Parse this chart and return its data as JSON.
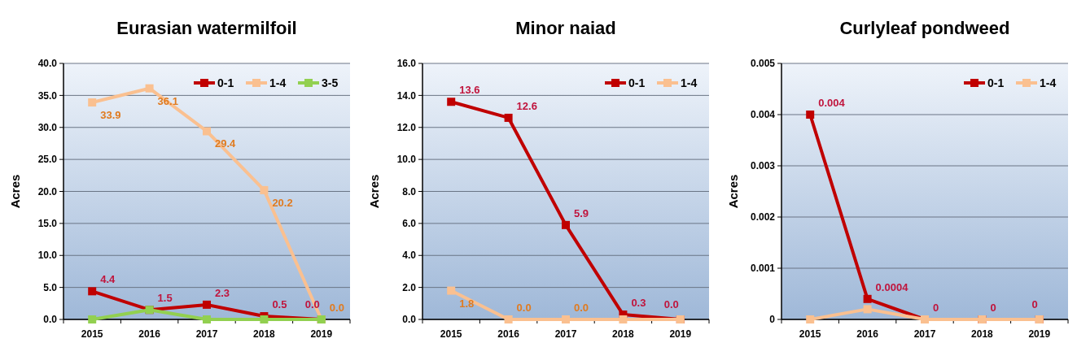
{
  "chart_data": [
    {
      "type": "line",
      "title": "Eurasian watermilfoil",
      "ylabel": "Acres",
      "categories": [
        "2015",
        "2016",
        "2017",
        "2018",
        "2019"
      ],
      "ylim": [
        0,
        40
      ],
      "yticks": [
        {
          "value": 0,
          "label": "0.0"
        },
        {
          "value": 5,
          "label": "5.0"
        },
        {
          "value": 10,
          "label": "10.0"
        },
        {
          "value": 15,
          "label": "15.0"
        },
        {
          "value": 20,
          "label": "20.0"
        },
        {
          "value": 25,
          "label": "25.0"
        },
        {
          "value": 30,
          "label": "30.0"
        },
        {
          "value": 35,
          "label": "35.0"
        },
        {
          "value": 40,
          "label": "40.0"
        }
      ],
      "grid": "y",
      "legend": "top right",
      "marker": "square",
      "line_style": "solid",
      "series": [
        {
          "name": "0-1",
          "color": "#c00000",
          "values": [
            4.4,
            1.5,
            2.3,
            0.5,
            0.0
          ],
          "value_labels": [
            "4.4",
            "1.5",
            "2.3",
            "0.5",
            "0.0"
          ]
        },
        {
          "name": "1-4",
          "color": "#fac090",
          "values": [
            33.9,
            36.1,
            29.4,
            20.2,
            0.0
          ],
          "value_labels": [
            "33.9",
            "36.1",
            "29.4",
            "20.2",
            "0.0"
          ]
        },
        {
          "name": "3-5",
          "color": "#92d050",
          "values": [
            0,
            1.5,
            0,
            0,
            0
          ]
        }
      ]
    },
    {
      "type": "line",
      "title": "Minor naiad",
      "ylabel": "Acres",
      "categories": [
        "2015",
        "2016",
        "2017",
        "2018",
        "2019"
      ],
      "ylim": [
        0,
        16
      ],
      "yticks": [
        {
          "value": 0,
          "label": "0.0"
        },
        {
          "value": 2,
          "label": "2.0"
        },
        {
          "value": 4,
          "label": "4.0"
        },
        {
          "value": 6,
          "label": "6.0"
        },
        {
          "value": 8,
          "label": "8.0"
        },
        {
          "value": 10,
          "label": "10.0"
        },
        {
          "value": 12,
          "label": "12.0"
        },
        {
          "value": 14,
          "label": "14.0"
        },
        {
          "value": 16,
          "label": "16.0"
        }
      ],
      "grid": "y",
      "legend": "top right",
      "marker": "square",
      "line_style": "solid",
      "series": [
        {
          "name": "0-1",
          "color": "#c00000",
          "values": [
            13.6,
            12.6,
            5.9,
            0.3,
            0.0
          ],
          "value_labels": [
            "13.6",
            "12.6",
            "5.9",
            "0.3",
            "0.0"
          ]
        },
        {
          "name": "1-4",
          "color": "#fac090",
          "values": [
            1.8,
            0,
            0,
            0,
            0
          ],
          "value_labels": [
            "1.8",
            "0.0",
            "0.0",
            null,
            null
          ]
        }
      ]
    },
    {
      "type": "line",
      "title": "Curlyleaf pondweed",
      "ylabel": "Acres",
      "categories": [
        "2015",
        "2016",
        "2017",
        "2018",
        "2019"
      ],
      "ylim": [
        0,
        0.005
      ],
      "yticks": [
        0,
        0.001,
        0.002,
        0.003,
        0.004,
        0.005
      ],
      "grid": "y",
      "legend": "top right",
      "marker": "square",
      "line_style": "solid",
      "series": [
        {
          "name": "0-1",
          "color": "#c00000",
          "values": [
            0.004,
            0.0004,
            0,
            0,
            0
          ],
          "value_labels": [
            "0.004",
            "0.0004",
            "0",
            "0",
            "0"
          ]
        },
        {
          "name": "1-4",
          "color": "#fac090",
          "values": [
            0,
            0.0002,
            0,
            0,
            0
          ]
        }
      ]
    }
  ]
}
